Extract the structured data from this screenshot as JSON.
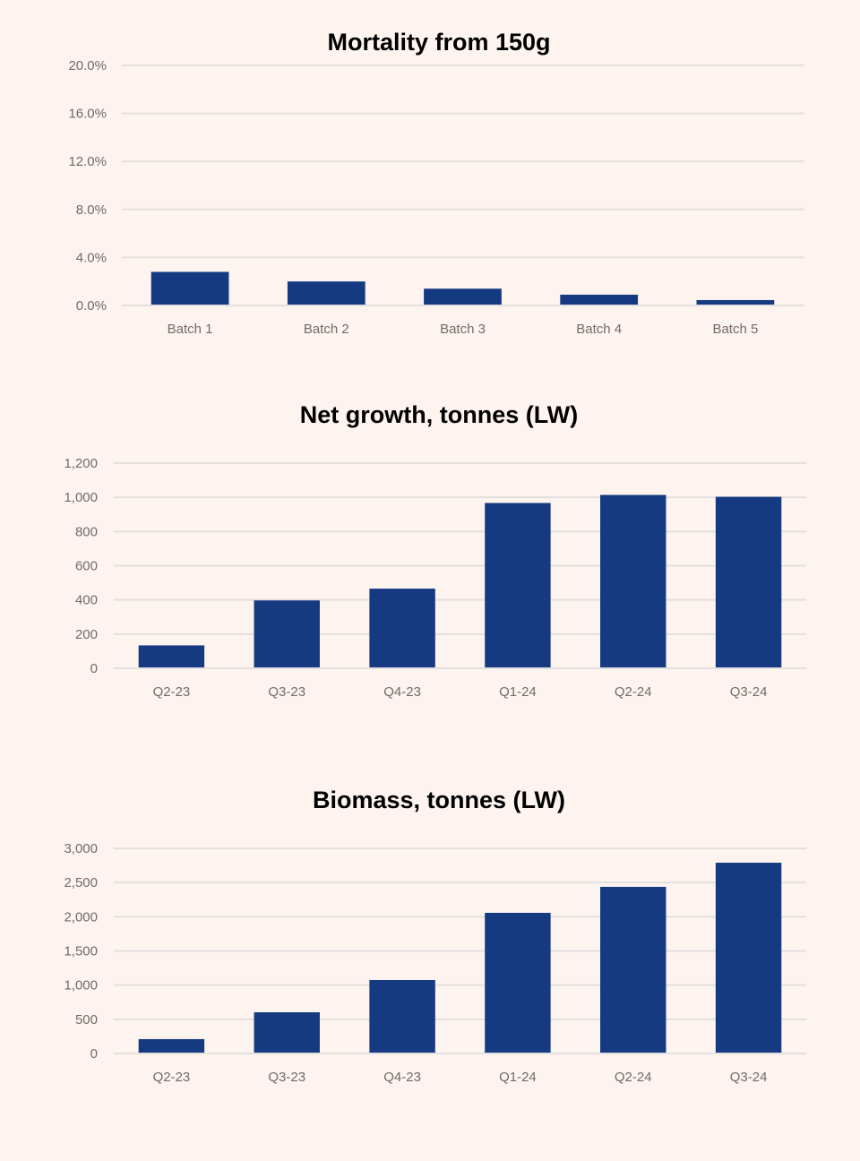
{
  "colors": {
    "background": "#fdf4f0",
    "bar": "#153a82",
    "grid": "#e3dfdf",
    "tick_text": "#6f6a6a"
  },
  "chart_data": [
    {
      "type": "bar",
      "title": "Mortality from 150g",
      "categories": [
        "Batch 1",
        "Batch 2",
        "Batch 3",
        "Batch 4",
        "Batch 5"
      ],
      "values": [
        2.8,
        2.0,
        1.4,
        0.9,
        0.45
      ],
      "ylim": [
        0,
        20
      ],
      "yticks": [
        "0.0%",
        "4.0%",
        "8.0%",
        "12.0%",
        "16.0%",
        "20.0%"
      ],
      "grid": true
    },
    {
      "type": "bar",
      "title": "Net growth, tonnes (LW)",
      "categories": [
        "Q2-23",
        "Q3-23",
        "Q4-23",
        "Q1-24",
        "Q2-24",
        "Q3-24"
      ],
      "values": [
        134,
        397,
        466,
        967,
        1014,
        1003
      ],
      "ylim": [
        0,
        1200
      ],
      "yticks": [
        "0",
        "200",
        "400",
        "600",
        "800",
        "1,000",
        "1,200"
      ],
      "grid": true
    },
    {
      "type": "bar",
      "title": "Biomass, tonnes (LW)",
      "categories": [
        "Q2-23",
        "Q3-23",
        "Q4-23",
        "Q1-24",
        "Q2-24",
        "Q3-24"
      ],
      "values": [
        210,
        603,
        1074,
        2057,
        2437,
        2790
      ],
      "ylim": [
        0,
        3000
      ],
      "yticks": [
        "0",
        "500",
        "1,000",
        "1,500",
        "2,000",
        "2,500",
        "3,000"
      ],
      "grid": true
    }
  ]
}
